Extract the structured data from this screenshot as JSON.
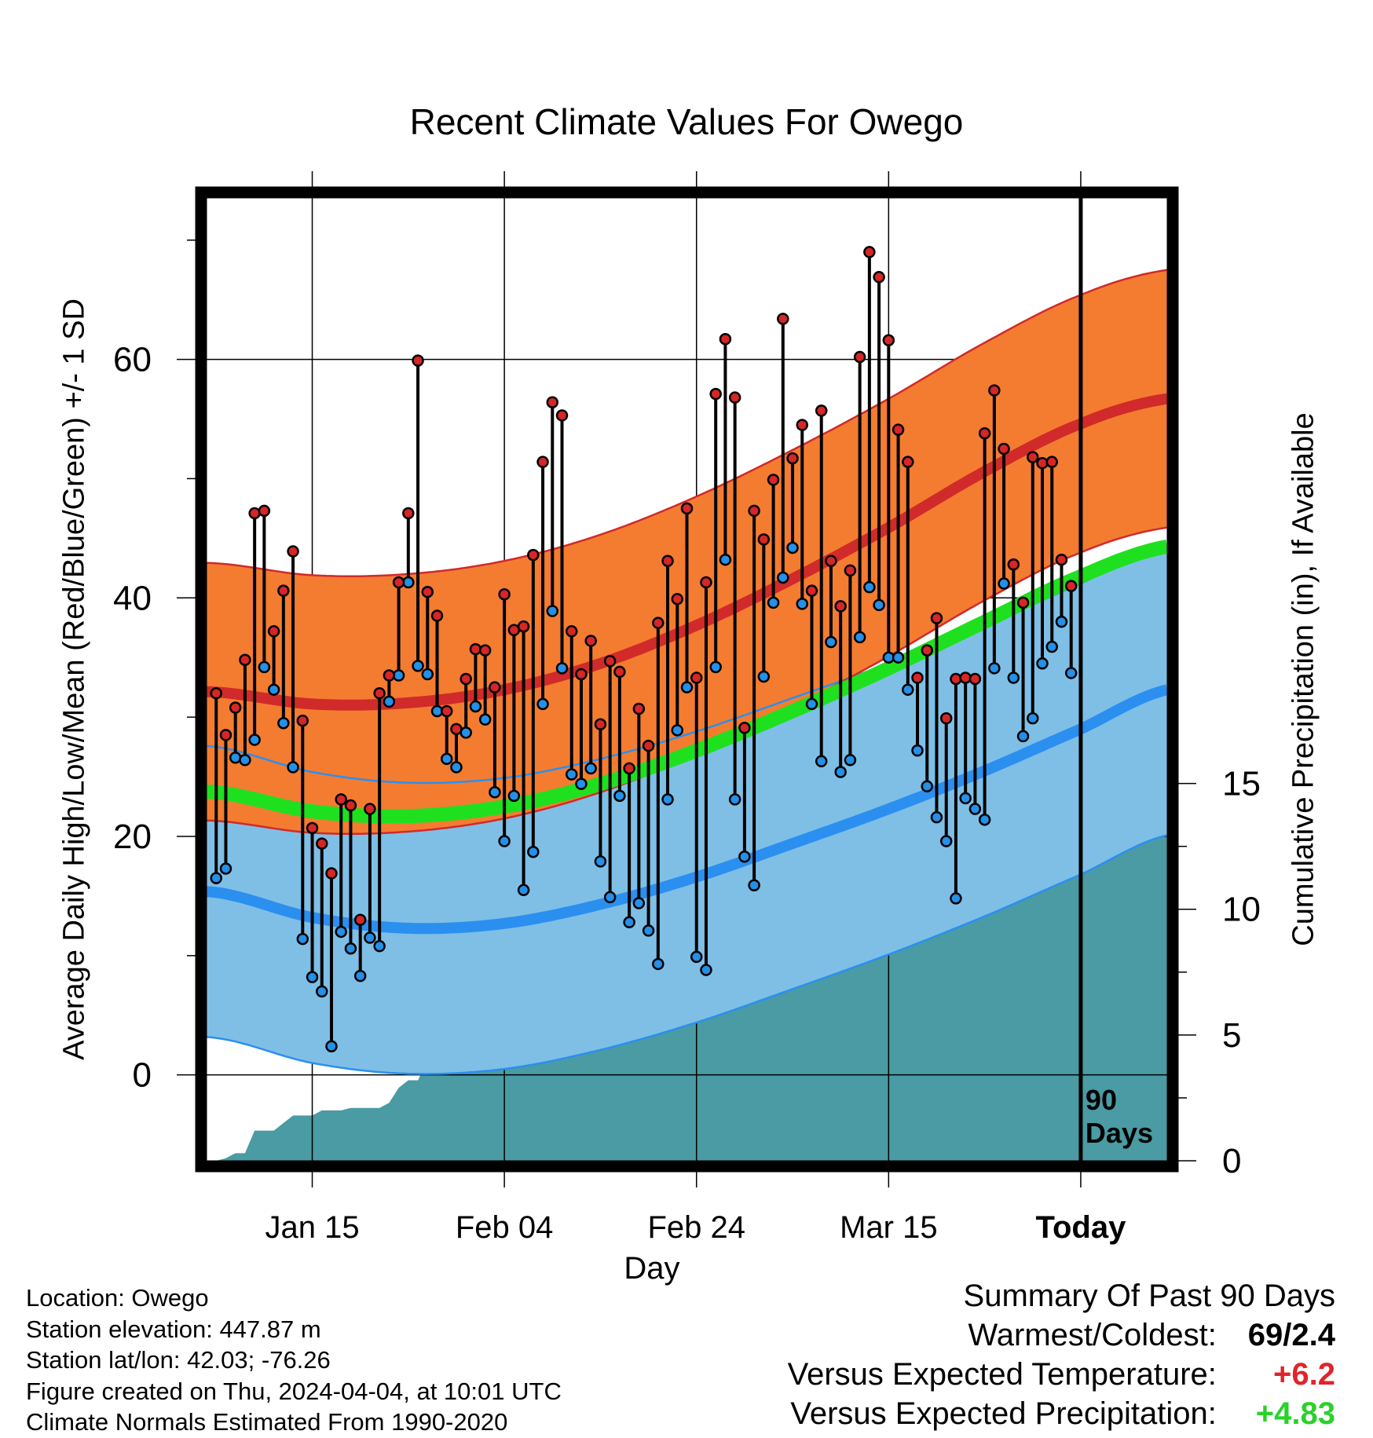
{
  "chart_data": {
    "type": "line",
    "title": "Recent Climate Values For Owego",
    "xlabel": "Day",
    "ylabel_left": "Average Daily High/Low/Mean (Red/Blue/Green) +/- 1 SD",
    "ylabel_right": "Cumulative Precipitation (in), If Available",
    "x_ticks": [
      "Jan 15",
      "Feb 04",
      "Feb 24",
      "Mar 15",
      "Today"
    ],
    "x_tick_days": [
      10,
      30,
      50,
      70,
      90
    ],
    "x_range": [
      -1,
      99
    ],
    "y_ticks": [
      0,
      20,
      40,
      60
    ],
    "y_range": [
      -7.2,
      74
    ],
    "y2_ticks": [
      0,
      5,
      10,
      15
    ],
    "y2_range": [
      0,
      38.5
    ],
    "today_marker_label": "90 Days",
    "daily_highs": [
      32,
      28.5,
      30.8,
      34.8,
      47.1,
      47.3,
      37.2,
      40.6,
      43.9,
      29.7,
      20.7,
      19.4,
      16.9,
      23.1,
      22.6,
      13,
      22.3,
      32,
      33.5,
      41.3,
      47.1,
      59.9,
      40.5,
      38.5,
      30.5,
      29,
      33.2,
      35.7,
      35.6,
      32.5,
      40.3,
      37.3,
      37.6,
      43.6,
      51.4,
      56.4,
      55.3,
      37.2,
      33.6,
      36.4,
      29.4,
      34.7,
      33.8,
      25.7,
      30.7,
      27.6,
      37.9,
      43.1,
      39.9,
      47.5,
      33.3,
      41.3,
      57.1,
      61.7,
      56.8,
      29.1,
      47.3,
      44.9,
      49.9,
      63.4,
      51.7,
      54.5,
      40.6,
      55.7,
      43.1,
      39.3,
      42.3,
      60.2,
      69,
      66.9,
      61.6,
      54.1,
      51.4,
      33.3,
      35.6,
      38.3,
      29.9,
      33.2,
      33.3,
      33.2,
      53.8,
      57.4,
      52.5,
      42.8,
      39.6,
      51.8,
      51.3,
      51.4,
      43.2,
      41
    ],
    "daily_lows": [
      16.5,
      17.3,
      26.6,
      26.4,
      28.1,
      34.2,
      32.3,
      29.5,
      25.8,
      11.4,
      8.2,
      7,
      2.4,
      12,
      10.6,
      8.3,
      11.5,
      10.8,
      31.3,
      33.5,
      41.3,
      34.3,
      33.6,
      30.5,
      26.5,
      25.8,
      28.7,
      30.9,
      29.8,
      23.7,
      19.6,
      23.4,
      15.5,
      18.7,
      31.1,
      38.9,
      34.1,
      25.2,
      24.4,
      25.7,
      17.9,
      14.9,
      23.4,
      12.8,
      14.4,
      12.1,
      9.3,
      23.1,
      28.9,
      32.5,
      9.9,
      8.8,
      34.2,
      43.2,
      23.1,
      18.3,
      15.9,
      33.4,
      39.6,
      41.7,
      44.2,
      39.5,
      31.1,
      26.3,
      36.3,
      25.4,
      26.4,
      36.7,
      40.9,
      39.4,
      35,
      35,
      32.3,
      27.2,
      24.2,
      21.6,
      19.6,
      14.8,
      23.2,
      22.3,
      21.4,
      34.1,
      41.2,
      33.3,
      28.4,
      29.9,
      34.5,
      35.9,
      38,
      33.7
    ],
    "normal_high": {
      "day": [
        0,
        10,
        20,
        30,
        40,
        50,
        60,
        70,
        80,
        90,
        99
      ],
      "mean": [
        32.1,
        31.1,
        31.2,
        32.3,
        34.5,
        37.7,
        41.6,
        45.9,
        50.6,
        54.6,
        56.7
      ],
      "sd": 10.8
    },
    "normal_low": {
      "day": [
        0,
        10,
        20,
        30,
        40,
        50,
        60,
        70,
        80,
        90,
        99
      ],
      "mean": [
        15.3,
        13.2,
        12.3,
        12.7,
        14.3,
        16.6,
        19.4,
        22.3,
        25.5,
        29.0,
        32.3
      ],
      "sd": 12.2
    },
    "normal_mean": {
      "day": [
        0,
        10,
        20,
        30,
        40,
        50,
        60,
        70,
        80,
        90,
        99
      ],
      "mean": [
        23.7,
        22.1,
        21.7,
        22.5,
        24.4,
        27.2,
        30.5,
        34.1,
        38.0,
        41.8,
        44.3
      ]
    },
    "cumulative_precip": {
      "day": [
        0,
        1,
        2,
        3,
        4,
        5,
        6,
        7,
        8,
        9,
        10,
        11,
        12,
        13,
        14,
        15,
        16,
        17,
        18,
        19,
        20,
        21,
        22,
        23,
        24,
        26,
        30,
        34,
        38,
        40,
        42,
        44,
        46,
        48,
        50,
        52,
        54,
        56,
        58,
        60,
        62,
        64,
        66,
        68,
        70,
        72,
        74,
        76,
        78,
        80,
        82,
        84,
        86,
        88,
        89,
        90,
        99
      ],
      "value": [
        0,
        0.1,
        0.3,
        0.3,
        1.2,
        1.2,
        1.2,
        1.5,
        1.8,
        1.8,
        1.8,
        2.0,
        2.0,
        2.0,
        2.1,
        2.1,
        2.1,
        2.1,
        2.3,
        2.9,
        3.2,
        3.2,
        4.0,
        5.2,
        5.3,
        5.3,
        5.3,
        5.4,
        5.4,
        5.5,
        5.6,
        5.6,
        5.8,
        5.8,
        5.8,
        5.8,
        7.1,
        7.1,
        7.7,
        7.7,
        8.2,
        8.5,
        9.8,
        10.0,
        10.0,
        10.2,
        10.4,
        10.6,
        10.9,
        11.0,
        11.2,
        11.2,
        11.2,
        11.3,
        12.1,
        13.0,
        13.0
      ]
    },
    "colors": {
      "high_band": "#f47c30",
      "high_line": "#d12a2a",
      "low_band": "#7fbfe6",
      "low_line": "#2b8ff0",
      "overlap_band": "#9b1519",
      "mean_line": "#1fe01f",
      "precip_fill": "#4a9ba3",
      "high_dot": "#d62626",
      "low_dot": "#2490e8"
    }
  },
  "info": {
    "location": "Location: Owego",
    "elevation": "Station elevation: 447.87 m",
    "latlon": "Station lat/lon: 42.03; -76.26",
    "created": "Figure created on Thu, 2024-04-04, at 10:01 UTC",
    "normals": "Climate Normals Estimated From 1990-2020"
  },
  "summary": {
    "heading": "Summary Of Past 90 Days",
    "warm_cold_label": "Warmest/Coldest:",
    "warm_cold_value": "69/2.4",
    "temp_label": "Versus Expected Temperature:",
    "temp_value": "+6.2",
    "temp_color": "#e0242a",
    "precip_label": "Versus Expected Precipitation:",
    "precip_value": "+4.83",
    "precip_color": "#2bd12b"
  }
}
